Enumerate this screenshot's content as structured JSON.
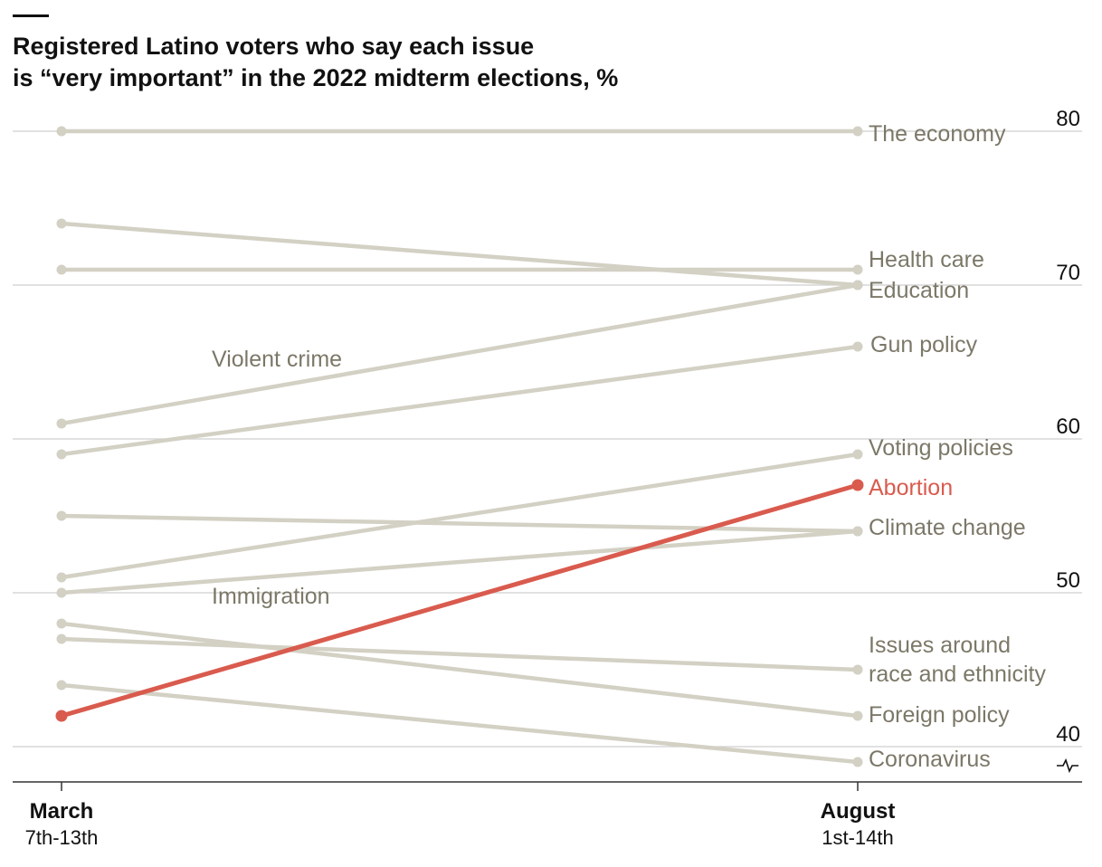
{
  "title_line1": "Registered Latino voters who say each issue",
  "title_line2": "is “very important” in the 2022 midterm elections, %",
  "chart_data": {
    "type": "line",
    "x": [
      "March 7th-13th",
      "August 1st-14th"
    ],
    "x_ticks": [
      {
        "main": "March",
        "sub": "7th-13th"
      },
      {
        "main": "August",
        "sub": "1st-14th"
      }
    ],
    "ylim": [
      38,
      82
    ],
    "yticks": [
      40,
      50,
      60,
      70,
      80
    ],
    "grid": true,
    "y_axis_break": true,
    "colors": {
      "default": "#d3d0c4",
      "highlight": "#d95b4e",
      "label": "#7c7868"
    },
    "series": [
      {
        "name": "The economy",
        "values": [
          80,
          80
        ],
        "highlight": false
      },
      {
        "name": "Health care",
        "values": [
          71,
          71
        ],
        "highlight": false
      },
      {
        "name": "Education",
        "values": [
          74,
          70
        ],
        "highlight": false
      },
      {
        "name": "Violent crime",
        "values": [
          61,
          70
        ],
        "highlight": false
      },
      {
        "name": "Gun policy",
        "values": [
          59,
          66
        ],
        "highlight": false
      },
      {
        "name": "Voting policies",
        "values": [
          51,
          59
        ],
        "highlight": false
      },
      {
        "name": "Abortion",
        "values": [
          42,
          57
        ],
        "highlight": true
      },
      {
        "name": "Climate change",
        "values": [
          55,
          54
        ],
        "highlight": false
      },
      {
        "name": "Immigration",
        "values": [
          50,
          54
        ],
        "highlight": false
      },
      {
        "name": "Issues around race and ethnicity",
        "values": [
          47,
          45
        ],
        "highlight": false
      },
      {
        "name": "Foreign policy",
        "values": [
          48,
          42
        ],
        "highlight": false
      },
      {
        "name": "Coronavirus",
        "values": [
          44,
          39
        ],
        "highlight": false
      }
    ],
    "labels": [
      {
        "series": "The economy",
        "lines": [
          "The economy"
        ],
        "anchor": "end"
      },
      {
        "series": "Health care",
        "lines": [
          "Health care"
        ],
        "anchor": "end"
      },
      {
        "series": "Education",
        "lines": [
          "Education"
        ],
        "anchor": "end"
      },
      {
        "series": "Violent crime",
        "lines": [
          "Violent crime"
        ],
        "anchor": "inline"
      },
      {
        "series": "Gun policy",
        "lines": [
          "Gun policy"
        ],
        "anchor": "end"
      },
      {
        "series": "Voting policies",
        "lines": [
          "Voting policies"
        ],
        "anchor": "end"
      },
      {
        "series": "Abortion",
        "lines": [
          "Abortion"
        ],
        "anchor": "end"
      },
      {
        "series": "Climate change",
        "lines": [
          "Climate change"
        ],
        "anchor": "end"
      },
      {
        "series": "Immigration",
        "lines": [
          "Immigration"
        ],
        "anchor": "inline"
      },
      {
        "series": "Issues around race and ethnicity",
        "lines": [
          "Issues around",
          "race and ethnicity"
        ],
        "anchor": "end"
      },
      {
        "series": "Foreign policy",
        "lines": [
          "Foreign policy"
        ],
        "anchor": "end"
      },
      {
        "series": "Coronavirus",
        "lines": [
          "Coronavirus"
        ],
        "anchor": "end"
      }
    ]
  }
}
